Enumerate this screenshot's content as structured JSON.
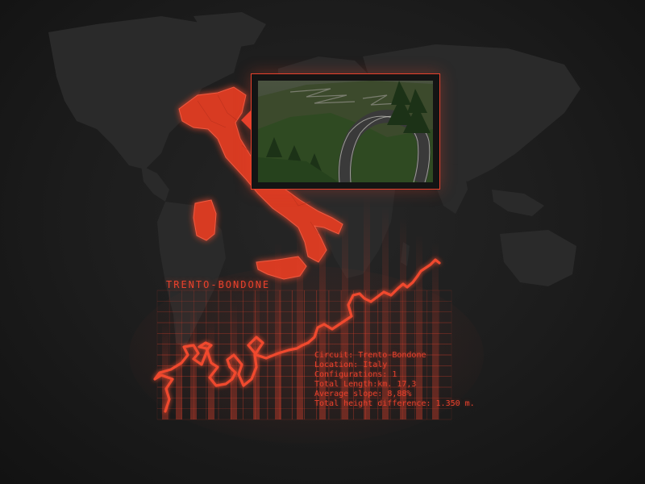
{
  "circuit": {
    "title": "TRENTO-BONDONE",
    "country_highlight": "Italy"
  },
  "info": {
    "circuit_label": "Circuit:",
    "circuit_value": "Trento-Bondone",
    "location_label": "Location:",
    "location_value": "Italy",
    "configurations_label": "Configurations:",
    "configurations_value": "1",
    "total_length_label": "Total Length:km.",
    "total_length_value": "17,3",
    "average_slope_label": "Average slope:",
    "average_slope_value": "8,88%",
    "height_difference_label": "Total height difference:",
    "height_difference_value": "1.350 m."
  },
  "preview": {
    "icon": "track-preview-image"
  },
  "colors": {
    "accent": "#e8412c",
    "background": "#1a1a1a",
    "map_land": "#2c2c2c",
    "highlight_country": "#d83a24"
  }
}
